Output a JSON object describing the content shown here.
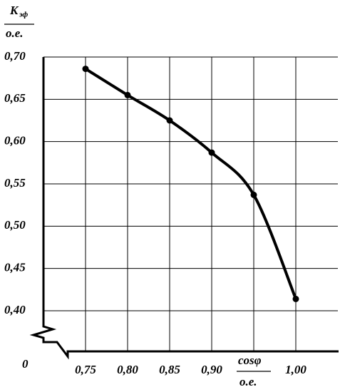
{
  "chart_data": {
    "type": "line",
    "y_label": {
      "symbol": "K",
      "subscript": "эф",
      "unit": "о.е."
    },
    "x_label": {
      "symbol": "cosφ",
      "unit": "о.е."
    },
    "origin_label": "0",
    "x": [
      0.75,
      0.8,
      0.85,
      0.9,
      0.95,
      1.0
    ],
    "series": [
      {
        "color": "#000000",
        "values": [
          0.686,
          0.655,
          0.625,
          0.587,
          0.537,
          0.414
        ]
      }
    ],
    "xlim": [
      0.7,
      1.05
    ],
    "ylim": [
      0.4,
      0.7
    ],
    "xticks": [
      {
        "value": 0.75,
        "label": "0,75"
      },
      {
        "value": 0.8,
        "label": "0,80"
      },
      {
        "value": 0.85,
        "label": "0,85"
      },
      {
        "value": 0.9,
        "label": "0,90"
      },
      {
        "value": 1.0,
        "label": "1,00"
      }
    ],
    "minor_xticks": [
      0.95
    ],
    "yticks": [
      {
        "value": 0.4,
        "label": "0,40"
      },
      {
        "value": 0.45,
        "label": "0,45"
      },
      {
        "value": 0.5,
        "label": "0,50"
      },
      {
        "value": 0.55,
        "label": "0,55"
      },
      {
        "value": 0.6,
        "label": "0,60"
      },
      {
        "value": 0.65,
        "label": "0,65"
      },
      {
        "value": 0.7,
        "label": "0,70"
      }
    ],
    "grid": true
  }
}
